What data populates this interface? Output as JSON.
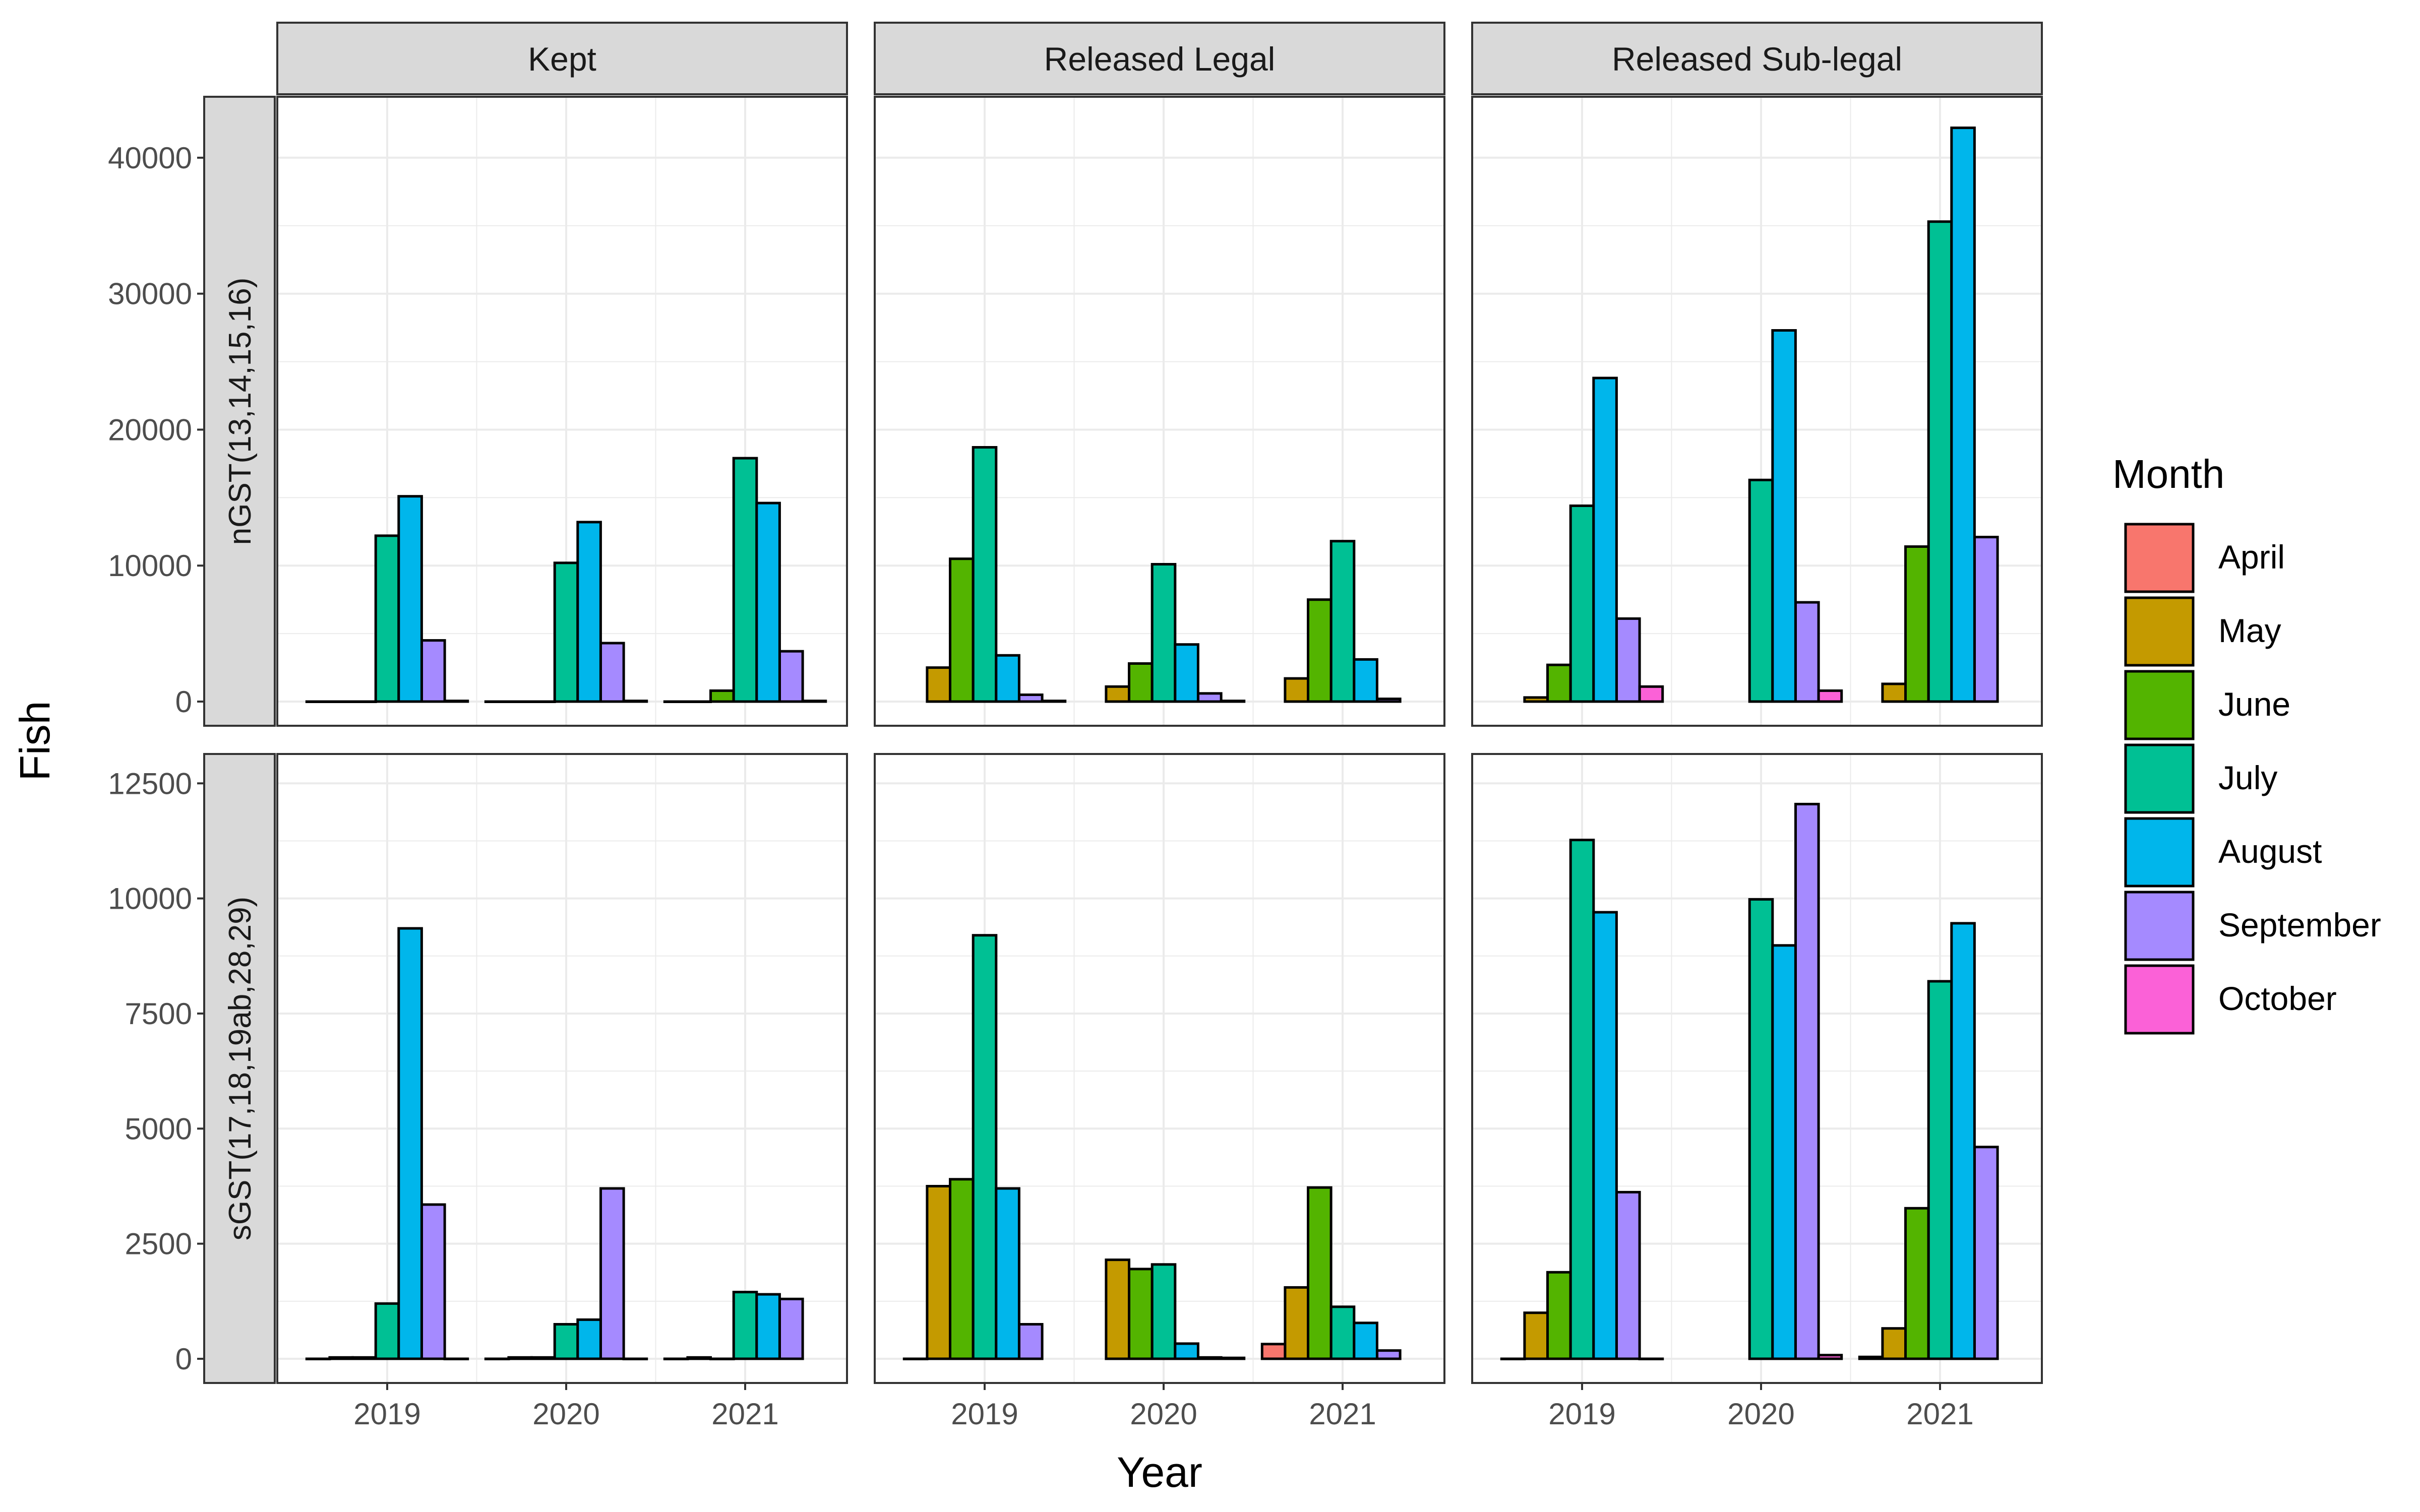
{
  "chart_data": {
    "type": "bar",
    "xlabel": "Year",
    "ylabel": "Fish",
    "categories": [
      "2019",
      "2020",
      "2021"
    ],
    "legend": {
      "title": "Month",
      "position": "right",
      "entries": [
        {
          "name": "April",
          "color": "#F8766D"
        },
        {
          "name": "May",
          "color": "#C49A00"
        },
        {
          "name": "June",
          "color": "#53B400"
        },
        {
          "name": "July",
          "color": "#00C094"
        },
        {
          "name": "August",
          "color": "#00B6EB"
        },
        {
          "name": "September",
          "color": "#A58AFF"
        },
        {
          "name": "October",
          "color": "#FB61D7"
        }
      ]
    },
    "facet_columns": [
      "Kept",
      "Released Legal",
      "Released Sub-legal"
    ],
    "facet_rows": [
      {
        "label": "nGST(13,14,15,16)",
        "ylim": [
          0,
          43000
        ],
        "ticks": [
          0,
          10000,
          20000,
          30000,
          40000
        ]
      },
      {
        "label": "sGST(17,18,19ab,28,29)",
        "ylim": [
          0,
          12700
        ],
        "ticks": [
          0,
          2500,
          5000,
          7500,
          10000,
          12500
        ]
      }
    ],
    "grid": true,
    "panels": [
      {
        "row": 0,
        "col": 0,
        "groups": [
          {
            "year": "2019",
            "bars": [
              {
                "month": "April",
                "value": 0
              },
              {
                "month": "May",
                "value": 0
              },
              {
                "month": "June",
                "value": 0
              },
              {
                "month": "July",
                "value": 12200
              },
              {
                "month": "August",
                "value": 15100
              },
              {
                "month": "September",
                "value": 4500
              },
              {
                "month": "October",
                "value": 50
              }
            ]
          },
          {
            "year": "2020",
            "bars": [
              {
                "month": "April",
                "value": 0
              },
              {
                "month": "May",
                "value": 0
              },
              {
                "month": "June",
                "value": 0
              },
              {
                "month": "July",
                "value": 10200
              },
              {
                "month": "August",
                "value": 13200
              },
              {
                "month": "September",
                "value": 4300
              },
              {
                "month": "October",
                "value": 50
              }
            ]
          },
          {
            "year": "2021",
            "bars": [
              {
                "month": "April",
                "value": 0
              },
              {
                "month": "May",
                "value": 0
              },
              {
                "month": "June",
                "value": 800
              },
              {
                "month": "July",
                "value": 17900
              },
              {
                "month": "August",
                "value": 14600
              },
              {
                "month": "September",
                "value": 3700
              },
              {
                "month": "October",
                "value": 50
              }
            ]
          }
        ]
      },
      {
        "row": 0,
        "col": 1,
        "groups": [
          {
            "year": "2019",
            "bars": [
              {
                "month": "May",
                "value": 2500
              },
              {
                "month": "June",
                "value": 10500
              },
              {
                "month": "July",
                "value": 18700
              },
              {
                "month": "August",
                "value": 3400
              },
              {
                "month": "September",
                "value": 500
              },
              {
                "month": "October",
                "value": 50
              }
            ]
          },
          {
            "year": "2020",
            "bars": [
              {
                "month": "May",
                "value": 1100
              },
              {
                "month": "June",
                "value": 2800
              },
              {
                "month": "July",
                "value": 10100
              },
              {
                "month": "August",
                "value": 4200
              },
              {
                "month": "September",
                "value": 600
              },
              {
                "month": "October",
                "value": 50
              }
            ]
          },
          {
            "year": "2021",
            "bars": [
              {
                "month": "May",
                "value": 1700
              },
              {
                "month": "June",
                "value": 7500
              },
              {
                "month": "July",
                "value": 11800
              },
              {
                "month": "August",
                "value": 3100
              },
              {
                "month": "September",
                "value": 200
              }
            ]
          }
        ]
      },
      {
        "row": 0,
        "col": 2,
        "groups": [
          {
            "year": "2019",
            "bars": [
              {
                "month": "May",
                "value": 300
              },
              {
                "month": "June",
                "value": 2700
              },
              {
                "month": "July",
                "value": 14400
              },
              {
                "month": "August",
                "value": 23800
              },
              {
                "month": "September",
                "value": 6100
              },
              {
                "month": "October",
                "value": 1100
              }
            ]
          },
          {
            "year": "2020",
            "bars": [
              {
                "month": "July",
                "value": 16300
              },
              {
                "month": "August",
                "value": 27300
              },
              {
                "month": "September",
                "value": 7300
              },
              {
                "month": "October",
                "value": 800
              }
            ]
          },
          {
            "year": "2021",
            "bars": [
              {
                "month": "May",
                "value": 1300
              },
              {
                "month": "June",
                "value": 11400
              },
              {
                "month": "July",
                "value": 35300
              },
              {
                "month": "August",
                "value": 42200
              },
              {
                "month": "September",
                "value": 12100
              }
            ]
          }
        ]
      },
      {
        "row": 1,
        "col": 0,
        "groups": [
          {
            "year": "2019",
            "bars": [
              {
                "month": "April",
                "value": 0
              },
              {
                "month": "May",
                "value": 30
              },
              {
                "month": "June",
                "value": 30
              },
              {
                "month": "July",
                "value": 1200
              },
              {
                "month": "August",
                "value": 9350
              },
              {
                "month": "September",
                "value": 3350
              },
              {
                "month": "October",
                "value": 0
              }
            ]
          },
          {
            "year": "2020",
            "bars": [
              {
                "month": "April",
                "value": 0
              },
              {
                "month": "May",
                "value": 30
              },
              {
                "month": "June",
                "value": 30
              },
              {
                "month": "July",
                "value": 750
              },
              {
                "month": "August",
                "value": 850
              },
              {
                "month": "September",
                "value": 3700
              },
              {
                "month": "October",
                "value": 0
              }
            ]
          },
          {
            "year": "2021",
            "bars": [
              {
                "month": "April",
                "value": 0
              },
              {
                "month": "May",
                "value": 30
              },
              {
                "month": "June",
                "value": 0
              },
              {
                "month": "July",
                "value": 1450
              },
              {
                "month": "August",
                "value": 1400
              },
              {
                "month": "September",
                "value": 1300
              }
            ]
          }
        ]
      },
      {
        "row": 1,
        "col": 1,
        "groups": [
          {
            "year": "2019",
            "bars": [
              {
                "month": "April",
                "value": 0
              },
              {
                "month": "May",
                "value": 3750
              },
              {
                "month": "June",
                "value": 3900
              },
              {
                "month": "July",
                "value": 9200
              },
              {
                "month": "August",
                "value": 3700
              },
              {
                "month": "September",
                "value": 750
              }
            ]
          },
          {
            "year": "2020",
            "bars": [
              {
                "month": "May",
                "value": 2150
              },
              {
                "month": "June",
                "value": 1950
              },
              {
                "month": "July",
                "value": 2050
              },
              {
                "month": "August",
                "value": 330
              },
              {
                "month": "September",
                "value": 30
              },
              {
                "month": "October",
                "value": 20
              }
            ]
          },
          {
            "year": "2021",
            "bars": [
              {
                "month": "April",
                "value": 320
              },
              {
                "month": "May",
                "value": 1550
              },
              {
                "month": "June",
                "value": 3720
              },
              {
                "month": "July",
                "value": 1130
              },
              {
                "month": "August",
                "value": 780
              },
              {
                "month": "September",
                "value": 180
              }
            ]
          }
        ]
      },
      {
        "row": 1,
        "col": 2,
        "groups": [
          {
            "year": "2019",
            "bars": [
              {
                "month": "April",
                "value": 0
              },
              {
                "month": "May",
                "value": 1000
              },
              {
                "month": "June",
                "value": 1880
              },
              {
                "month": "July",
                "value": 11270
              },
              {
                "month": "August",
                "value": 9700
              },
              {
                "month": "September",
                "value": 3620
              },
              {
                "month": "October",
                "value": 0
              }
            ]
          },
          {
            "year": "2020",
            "bars": [
              {
                "month": "July",
                "value": 9980
              },
              {
                "month": "August",
                "value": 8980
              },
              {
                "month": "September",
                "value": 12050
              },
              {
                "month": "October",
                "value": 80
              }
            ]
          },
          {
            "year": "2021",
            "bars": [
              {
                "month": "April",
                "value": 40
              },
              {
                "month": "May",
                "value": 660
              },
              {
                "month": "June",
                "value": 3270
              },
              {
                "month": "July",
                "value": 8200
              },
              {
                "month": "August",
                "value": 9460
              },
              {
                "month": "September",
                "value": 4600
              }
            ]
          }
        ]
      }
    ]
  }
}
